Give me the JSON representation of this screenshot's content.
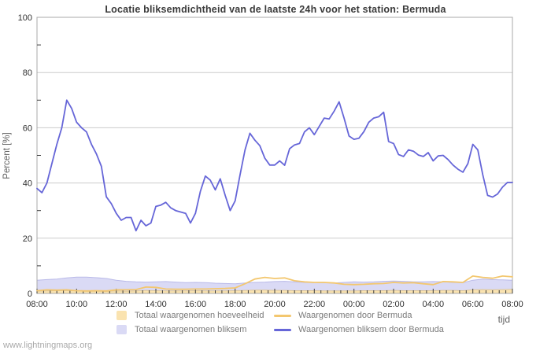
{
  "title": "Locatie bliksemdichtheid van de laatste 24h voor het station: Bermuda",
  "watermark": "www.lightningmaps.org",
  "colors": {
    "grid": "#cccccc",
    "plot_border": "#a8a8a8",
    "tick": "#3c3c3c",
    "area_total_amount": "#fae3b0",
    "area_total_amount_edge": "#dcc79c",
    "area_total_lightning": "#dadaf5",
    "area_total_lightning_edge": "#b9b9e8",
    "line_observed_bermuda": "#f3c76f",
    "line_lightning_bermuda": "#6666d8"
  },
  "legend": [
    {
      "label": "Totaal waargenomen hoeveelheid",
      "type": "area",
      "color": "#fae3b0"
    },
    {
      "label": "Totaal waargenomen bliksem",
      "type": "area",
      "color": "#dadaf5"
    },
    {
      "label": "Waargenomen door Bermuda",
      "type": "line",
      "color": "#f3c76f"
    },
    {
      "label": "Waargenomen bliksem door Bermuda",
      "type": "line",
      "color": "#6666d8"
    }
  ],
  "chart_data": {
    "type": "line",
    "title": "Locatie bliksemdichtheid van de laatste 24h voor het station: Bermuda",
    "xlabel": "tijd",
    "ylabel": "Percent  [%]",
    "ylim": [
      0,
      100
    ],
    "x_range_hours": [
      8,
      32
    ],
    "x_tick_labels": [
      "08:00",
      "10:00",
      "12:00",
      "14:00",
      "16:00",
      "18:00",
      "20:00",
      "22:00",
      "00:00",
      "02:00",
      "04:00",
      "06:00",
      "08:00"
    ],
    "x_minor_tick_minutes": 20,
    "y_major_ticks": [
      0,
      20,
      40,
      60,
      80,
      100
    ],
    "y_minor_ticks": [
      10,
      30,
      50,
      70,
      90
    ],
    "grid": "horizontal-only",
    "legend_position": "bottom",
    "series": [
      {
        "name": "Totaal waargenomen hoeveelheid",
        "type": "area",
        "color": "#fae3b0",
        "edge_color": "#dcc79c",
        "step_hours": 0.5,
        "values": [
          0.8,
          0.9,
          1.0,
          1.0,
          0.9,
          0.8,
          0.8,
          0.7,
          0.9,
          0.8,
          0.9,
          1.1,
          1.0,
          0.9,
          0.9,
          0.9,
          1.0,
          0.9,
          0.9,
          0.9,
          1.0,
          1.1,
          1.2,
          1.2,
          1.1,
          1.1,
          1.0,
          1.0,
          1.0,
          0.9,
          0.9,
          0.9,
          0.9,
          1.0,
          1.0,
          1.0,
          1.1,
          1.0,
          1.0,
          1.0,
          1.0,
          1.1,
          1.1,
          1.0,
          1.3,
          1.4,
          1.3,
          1.4,
          1.5
        ]
      },
      {
        "name": "Totaal waargenomen bliksem",
        "type": "area",
        "color": "#dadaf5",
        "edge_color": "#b9b9e8",
        "step_hours": 0.5,
        "values": [
          4.8,
          5.0,
          5.2,
          5.6,
          5.9,
          5.9,
          5.7,
          5.4,
          4.8,
          4.4,
          4.2,
          4.1,
          4.2,
          4.3,
          4.1,
          3.9,
          4.0,
          3.9,
          3.7,
          3.6,
          3.5,
          3.8,
          4.0,
          4.1,
          4.3,
          4.4,
          4.2,
          4.0,
          4.0,
          3.9,
          3.8,
          4.0,
          4.2,
          4.1,
          4.2,
          4.4,
          4.5,
          4.4,
          4.2,
          4.2,
          4.3,
          4.2,
          4.0,
          3.9,
          4.8,
          5.2,
          5.0,
          4.9,
          4.8
        ]
      },
      {
        "name": "Waargenomen door Bermuda",
        "type": "line",
        "color": "#f3c76f",
        "step_hours": 0.5,
        "values": [
          1.0,
          1.3,
          1.2,
          1.3,
          1.0,
          0.9,
          1.0,
          0.9,
          1.3,
          1.3,
          1.4,
          2.3,
          2.2,
          1.6,
          1.5,
          1.5,
          1.6,
          1.6,
          1.7,
          1.8,
          2.0,
          3.5,
          5.2,
          5.8,
          5.4,
          5.6,
          4.6,
          4.2,
          4.0,
          4.0,
          3.8,
          3.3,
          3.2,
          3.3,
          3.5,
          3.6,
          4.0,
          3.8,
          3.9,
          3.5,
          3.2,
          4.3,
          4.2,
          4.0,
          6.3,
          5.8,
          5.5,
          6.3,
          6.0
        ]
      },
      {
        "name": "Waargenomen bliksem door Bermuda",
        "type": "line",
        "color": "#6666d8",
        "step_hours": 0.25,
        "values": [
          38,
          36.5,
          40,
          47,
          54,
          60,
          70,
          67,
          62,
          60,
          58.5,
          54,
          50.5,
          46,
          35,
          32.5,
          29,
          26.5,
          27.5,
          27.5,
          22.7,
          26.5,
          24.5,
          25.5,
          31.5,
          32,
          33,
          31,
          30,
          29.5,
          29,
          25.5,
          29,
          37,
          42.5,
          41,
          37.5,
          41.5,
          35.5,
          30,
          33.5,
          43,
          52,
          58,
          55.5,
          53.5,
          49,
          46.5,
          46.5,
          48,
          46.4,
          52.4,
          53.8,
          54.3,
          58.5,
          60,
          57.5,
          60.5,
          63.5,
          63.2,
          66,
          69.4,
          63.5,
          57,
          55.8,
          56.2,
          58.6,
          62,
          63.5,
          64,
          65.6,
          55,
          54.3,
          50.3,
          49.6,
          52,
          51.5,
          50.1,
          49.6,
          51,
          48,
          49.8,
          50,
          48.5,
          46.5,
          45,
          43.9,
          47,
          54,
          52,
          43,
          35.5,
          34.9,
          36,
          38.5,
          40.2,
          40.2
        ]
      }
    ]
  }
}
